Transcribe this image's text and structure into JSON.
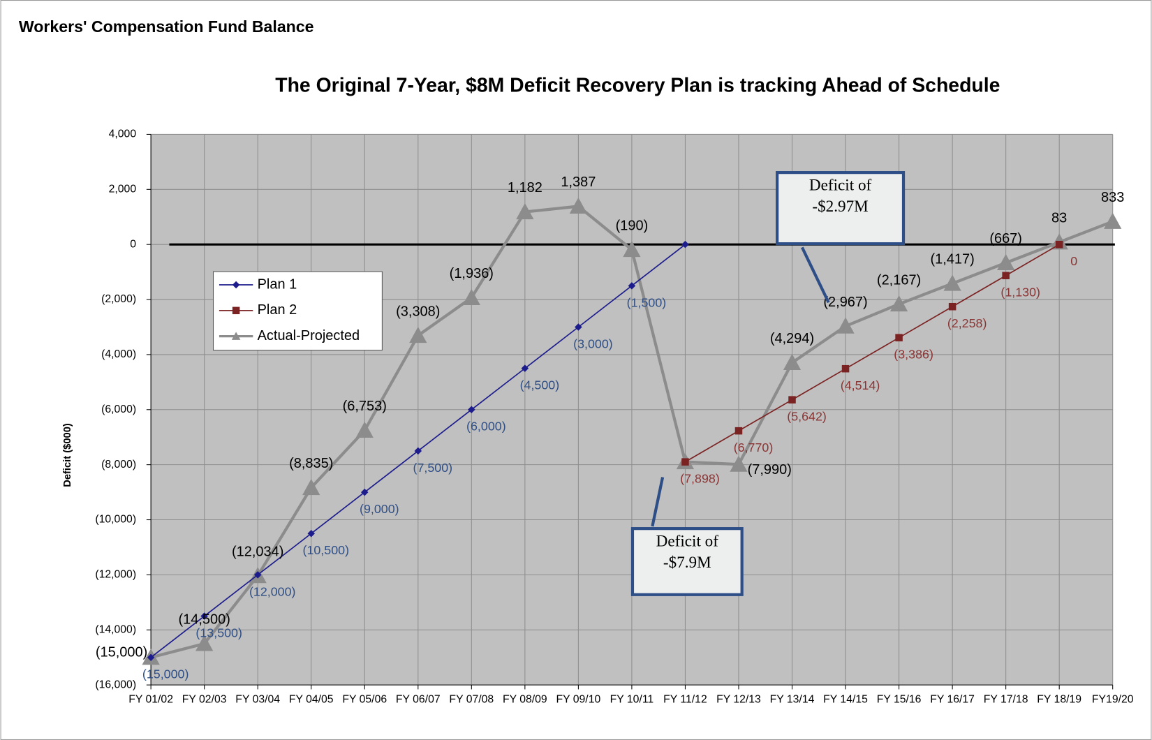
{
  "header": {
    "title": "Workers' Compensation Fund Balance"
  },
  "chart_data": {
    "type": "line",
    "title": "The Original 7-Year, $8M Deficit Recovery Plan is tracking Ahead of Schedule",
    "y_label": "Deficit ($000)",
    "categories": [
      "FY 01/02",
      "FY 02/03",
      "FY 03/04",
      "FY 04/05",
      "FY 05/06",
      "FY 06/07",
      "FY 07/08",
      "FY 08/09",
      "FY 09/10",
      "FY 10/11",
      "FY 11/12",
      "FY 12/13",
      "FY 13/14",
      "FY 14/15",
      "FY 15/16",
      "FY 16/17",
      "FY 17/18",
      "FY 18/19",
      "FY19/20"
    ],
    "ylim": [
      -16000,
      4000
    ],
    "yticks": [
      {
        "value": -16000,
        "label": "(16,000)"
      },
      {
        "value": -14000,
        "label": "(14,000)"
      },
      {
        "value": -12000,
        "label": "(12,000)"
      },
      {
        "value": -10000,
        "label": "(10,000)"
      },
      {
        "value": -8000,
        "label": "(8,000)"
      },
      {
        "value": -6000,
        "label": "(6,000)"
      },
      {
        "value": -4000,
        "label": "(4,000)"
      },
      {
        "value": -2000,
        "label": "(2,000)"
      },
      0,
      {
        "value": 2000,
        "label": "2,000"
      },
      {
        "value": 4000,
        "label": "4,000"
      }
    ],
    "grid": true,
    "legend": "left",
    "series": [
      {
        "name": "Plan 1",
        "color": "#1c1c8c",
        "label_color": "#2f4f86",
        "marker": "diamond",
        "values": [
          -15000,
          -13500,
          -12000,
          -10500,
          -9000,
          -7500,
          -6000,
          -4500,
          -3000,
          -1500,
          0,
          null,
          null,
          null,
          null,
          null,
          null,
          null,
          null
        ],
        "value_labels": [
          "(15,000)",
          "(13,500)",
          "(12,000)",
          "(10,500)",
          "(9,000)",
          "(7,500)",
          "(6,000)",
          "(4,500)",
          "(3,000)",
          "(1,500)",
          null,
          null,
          null,
          null,
          null,
          null,
          null,
          null,
          null
        ]
      },
      {
        "name": "Plan 2",
        "color": "#7b2222",
        "label_color": "#8b3434",
        "marker": "square",
        "values": [
          null,
          null,
          null,
          null,
          null,
          null,
          null,
          null,
          null,
          null,
          -7898,
          -6770,
          -5642,
          -4514,
          -3386,
          -2258,
          -1130,
          0,
          null
        ],
        "value_labels": [
          null,
          null,
          null,
          null,
          null,
          null,
          null,
          null,
          null,
          null,
          "(7,898)",
          "(6,770)",
          "(5,642)",
          "(4,514)",
          "(3,386)",
          "(2,258)",
          "(1,130)",
          "0",
          null
        ]
      },
      {
        "name": "Actual-Projected",
        "color": "#8c8c8c",
        "label_color": "#000000",
        "marker": "triangle",
        "values": [
          -15000,
          -14500,
          -12034,
          -8835,
          -6753,
          -3308,
          -1936,
          1182,
          1387,
          -190,
          -7898,
          -7990,
          -4294,
          -2967,
          -2167,
          -1417,
          -667,
          83,
          833
        ],
        "value_labels": [
          "(15,000)",
          "(14,500)",
          "(12,034)",
          "(8,835)",
          "(6,753)",
          "(3,308)",
          "(1,936)",
          "1,182",
          "1,387",
          "(190)",
          null,
          "(7,990)",
          "(4,294)",
          "(2,967)",
          "(2,167)",
          "(1,417)",
          "(667)",
          "83",
          "833"
        ]
      }
    ],
    "annotations": [
      {
        "text": "Deficit of -$2.97M"
      },
      {
        "text": "Deficit of -$7.9M"
      }
    ]
  }
}
